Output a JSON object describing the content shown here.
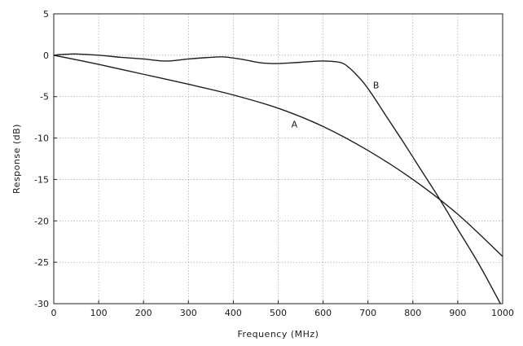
{
  "chart_data": {
    "type": "line",
    "title": "",
    "xlabel": "Frequency (MHz)",
    "ylabel": "Response (dB)",
    "xlim": [
      0,
      1000
    ],
    "ylim": [
      -30,
      5
    ],
    "xticks": [
      0,
      100,
      200,
      300,
      400,
      500,
      600,
      700,
      800,
      900,
      1000
    ],
    "yticks": [
      5,
      0,
      -5,
      -10,
      -15,
      -20,
      -25,
      -30
    ],
    "grid": true,
    "legend": "none",
    "series": [
      {
        "name": "A",
        "x": [
          0,
          100,
          200,
          300,
          400,
          500,
          600,
          700,
          800,
          900,
          1000
        ],
        "y": [
          0,
          -1.1,
          -2.3,
          -3.5,
          -4.8,
          -6.4,
          -8.6,
          -11.5,
          -15.0,
          -19.2,
          -24.3
        ]
      },
      {
        "name": "B",
        "x": [
          0,
          20,
          50,
          100,
          150,
          200,
          250,
          300,
          350,
          380,
          420,
          460,
          500,
          550,
          600,
          640,
          660,
          675,
          690,
          710,
          740,
          780,
          820,
          860,
          900,
          950,
          1000
        ],
        "y": [
          0,
          0.1,
          0.15,
          0,
          -0.25,
          -0.45,
          -0.7,
          -0.45,
          -0.25,
          -0.2,
          -0.5,
          -0.9,
          -1.0,
          -0.85,
          -0.7,
          -0.9,
          -1.6,
          -2.4,
          -3.3,
          -4.8,
          -7.3,
          -10.6,
          -14.0,
          -17.4,
          -21.0,
          -25.5,
          -30.5
        ]
      }
    ]
  }
}
